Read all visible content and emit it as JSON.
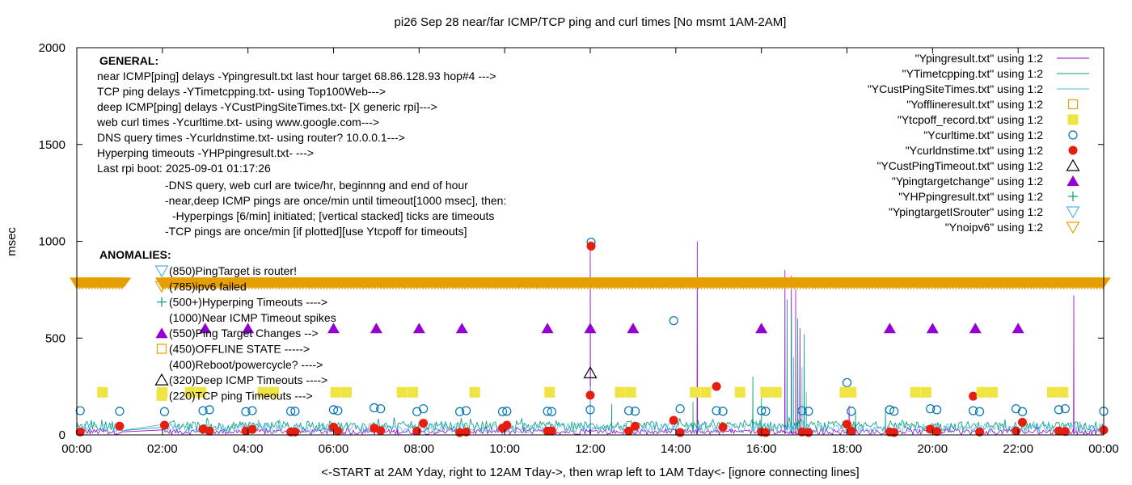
{
  "chart_data": {
    "type": "scatter",
    "title": "pi26 Sep 28  near/far ICMP/TCP ping and curl times [No msmt 1AM-2AM]",
    "xlabel": "<-START at 2AM Yday, right to 12AM Tday->, then wrap left to 1AM Tday<- [ignore connecting lines]",
    "ylabel": "msec",
    "xlim": [
      0,
      24
    ],
    "ylim": [
      0,
      2000
    ],
    "x_ticks": [
      {
        "v": 0,
        "label": "00:00"
      },
      {
        "v": 2,
        "label": "02:00"
      },
      {
        "v": 4,
        "label": "04:00"
      },
      {
        "v": 6,
        "label": "06:00"
      },
      {
        "v": 8,
        "label": "08:00"
      },
      {
        "v": 10,
        "label": "10:00"
      },
      {
        "v": 12,
        "label": "12:00"
      },
      {
        "v": 14,
        "label": "14:00"
      },
      {
        "v": 16,
        "label": "16:00"
      },
      {
        "v": 18,
        "label": "18:00"
      },
      {
        "v": 20,
        "label": "20:00"
      },
      {
        "v": 22,
        "label": "22:00"
      },
      {
        "v": 24,
        "label": "00:00"
      }
    ],
    "y_ticks": [
      {
        "v": 0,
        "label": "0"
      },
      {
        "v": 500,
        "label": "500"
      },
      {
        "v": 1000,
        "label": "1000"
      },
      {
        "v": 1500,
        "label": "1500"
      },
      {
        "v": 2000,
        "label": "2000"
      }
    ],
    "legend_position": "top-right",
    "legend": [
      {
        "label": "\"Ypingresult.txt\" using 1:2",
        "kind": "line",
        "color": "#9400d3"
      },
      {
        "label": "\"YTimetcpping.txt\" using 1:2",
        "kind": "line",
        "color": "#009e73"
      },
      {
        "label": "\"YCustPingSiteTimes.txt\" using 1:2",
        "kind": "line",
        "color": "#56b4e9"
      },
      {
        "label": "\"Yofflineresult.txt\" using 1:2",
        "kind": "open-square",
        "color": "#e69f00"
      },
      {
        "label": "\"Ytcpoff_record.txt\" using 1:2",
        "kind": "filled-square",
        "color": "#f0e442"
      },
      {
        "label": "\"Ycurltime.txt\" using 1:2",
        "kind": "open-circle",
        "color": "#0072b2"
      },
      {
        "label": "\"Ycurldnstime.txt\" using 1:2",
        "kind": "filled-circle",
        "color": "#e51e10"
      },
      {
        "label": "\"YCustPingTimeout.txt\" using 1:2",
        "kind": "open-triangle",
        "color": "#000000"
      },
      {
        "label": "\"Ypingtargetchange\" using 1:2",
        "kind": "filled-triangle",
        "color": "#9400d3"
      },
      {
        "label": "\"YHPpingresult.txt\" using 1:2",
        "kind": "plus",
        "color": "#009e73"
      },
      {
        "label": "\"YpingtargetISrouter\" using 1:2",
        "kind": "open-down-triangle",
        "color": "#56b4e9"
      },
      {
        "label": "\"Ynoipv6\" using 1:2",
        "kind": "open-down-triangle",
        "color": "#e69f00"
      }
    ],
    "annotations": {
      "general_header": "GENERAL:",
      "general_lines": [
        "near ICMP[ping] delays -Ypingresult.txt last hour target 68.86.128.93 hop#4 --->",
        "TCP ping delays -YTimetcpping.txt- using Top100Web--->",
        "deep ICMP[ping] delays -YCustPingSiteTimes.txt- [X generic rpi]--->",
        "web curl times -Ycurltime.txt- using www.google.com--->",
        "DNS query times -Ycurldnstime.txt- using router? 10.0.0.1--->",
        "Hyperping timeouts -YHPpingresult.txt- --->",
        "Last rpi boot: 2025-09-01 01:17:26"
      ],
      "notes": [
        "-DNS query, web curl are twice/hr, beginnng and end of hour",
        "-near,deep ICMP pings are once/min until timeout[1000 msec], then:",
        "-Hyperpings [6/min] initiated; [vertical stacked] ticks are timeouts",
        "-TCP pings are once/min [if plotted][use Ytcpoff for timeouts]"
      ],
      "anomalies_header": "ANOMALIES:",
      "anomaly_lines": [
        {
          "text": "(850)PingTarget is router!",
          "marker": "open-down-triangle",
          "color": "#56b4e9"
        },
        {
          "text": "(785)ipv6 failed",
          "marker": "open-down-triangle",
          "color": "#e69f00"
        },
        {
          "text": "(500+)Hyperping Timeouts ---->",
          "marker": "plus",
          "color": "#009e73"
        },
        {
          "text": "(1000)Near ICMP Timeout spikes",
          "marker": "none",
          "color": ""
        },
        {
          "text": "(550)Ping Target Changes -->",
          "marker": "filled-triangle",
          "color": "#9400d3"
        },
        {
          "text": "(450)OFFLINE STATE ----->",
          "marker": "open-square",
          "color": "#e69f00"
        },
        {
          "text": "(400)Reboot/powercycle? ---->",
          "marker": "none",
          "color": ""
        },
        {
          "text": "(320)Deep ICMP Timeouts ---->",
          "marker": "open-triangle",
          "color": "#000000"
        },
        {
          "text": "(220)TCP ping Timeouts --->",
          "marker": "filled-square",
          "color": "#f0e442"
        }
      ]
    },
    "series": [
      {
        "name": "\"Ycurltime.txt\" using 1:2",
        "kind": "open-circle",
        "color": "#0072b2",
        "points": [
          [
            0.08,
            125
          ],
          [
            1.0,
            122
          ],
          [
            2.05,
            120
          ],
          [
            2.95,
            125
          ],
          [
            3.1,
            130
          ],
          [
            3.95,
            120
          ],
          [
            4.1,
            125
          ],
          [
            5.0,
            122
          ],
          [
            5.1,
            122
          ],
          [
            6.0,
            130
          ],
          [
            6.1,
            125
          ],
          [
            6.95,
            140
          ],
          [
            7.1,
            135
          ],
          [
            7.95,
            120
          ],
          [
            8.1,
            135
          ],
          [
            8.95,
            120
          ],
          [
            9.1,
            125
          ],
          [
            9.95,
            120
          ],
          [
            10.05,
            122
          ],
          [
            11.0,
            122
          ],
          [
            11.1,
            120
          ],
          [
            12.0,
            130
          ],
          [
            12.02,
            995
          ],
          [
            12.9,
            125
          ],
          [
            13.05,
            122
          ],
          [
            13.95,
            590
          ],
          [
            14.1,
            135
          ],
          [
            14.95,
            125
          ],
          [
            15.1,
            122
          ],
          [
            16.0,
            125
          ],
          [
            16.1,
            122
          ],
          [
            16.95,
            125
          ],
          [
            17.1,
            122
          ],
          [
            18.0,
            270
          ],
          [
            18.1,
            122
          ],
          [
            19.0,
            130
          ],
          [
            19.1,
            122
          ],
          [
            19.95,
            135
          ],
          [
            20.1,
            130
          ],
          [
            20.95,
            125
          ],
          [
            21.1,
            120
          ],
          [
            21.95,
            135
          ],
          [
            22.1,
            120
          ],
          [
            22.95,
            130
          ],
          [
            23.1,
            135
          ],
          [
            24.0,
            122
          ]
        ]
      },
      {
        "name": "\"Ycurldnstime.txt\" using 1:2",
        "kind": "filled-circle",
        "color": "#e51e10",
        "points": [
          [
            0.08,
            15
          ],
          [
            1.0,
            45
          ],
          [
            2.05,
            50
          ],
          [
            2.95,
            30
          ],
          [
            3.1,
            20
          ],
          [
            3.95,
            20
          ],
          [
            4.1,
            28
          ],
          [
            5.0,
            15
          ],
          [
            5.1,
            15
          ],
          [
            6.0,
            40
          ],
          [
            6.1,
            20
          ],
          [
            6.95,
            35
          ],
          [
            7.1,
            22
          ],
          [
            7.95,
            20
          ],
          [
            8.1,
            60
          ],
          [
            8.95,
            12
          ],
          [
            9.1,
            15
          ],
          [
            9.95,
            35
          ],
          [
            10.05,
            50
          ],
          [
            11.0,
            20
          ],
          [
            11.1,
            20
          ],
          [
            12.0,
            205
          ],
          [
            12.02,
            975
          ],
          [
            12.9,
            20
          ],
          [
            13.05,
            45
          ],
          [
            13.95,
            75
          ],
          [
            14.1,
            12
          ],
          [
            14.95,
            250
          ],
          [
            15.1,
            40
          ],
          [
            16.0,
            15
          ],
          [
            16.1,
            12
          ],
          [
            16.95,
            15
          ],
          [
            17.1,
            12
          ],
          [
            18.0,
            55
          ],
          [
            18.1,
            20
          ],
          [
            19.0,
            15
          ],
          [
            19.1,
            12
          ],
          [
            19.95,
            30
          ],
          [
            20.1,
            18
          ],
          [
            20.95,
            200
          ],
          [
            21.1,
            15
          ],
          [
            21.95,
            20
          ],
          [
            22.1,
            65
          ],
          [
            22.95,
            20
          ],
          [
            23.1,
            18
          ],
          [
            24.0,
            25
          ]
        ]
      },
      {
        "name": "\"Ypingtargetchange\" using 1:2",
        "kind": "filled-triangle",
        "color": "#9400d3",
        "points": [
          [
            3.0,
            550
          ],
          [
            4.0,
            550
          ],
          [
            6.0,
            550
          ],
          [
            7.0,
            550
          ],
          [
            8.0,
            550
          ],
          [
            9.0,
            550
          ],
          [
            11.0,
            550
          ],
          [
            12.0,
            550
          ],
          [
            13.0,
            550
          ],
          [
            16.0,
            550
          ],
          [
            19.0,
            550
          ],
          [
            20.0,
            550
          ],
          [
            21.0,
            550
          ],
          [
            22.0,
            550
          ]
        ]
      },
      {
        "name": "\"YCustPingTimeout.txt\" using 1:2",
        "kind": "open-triangle",
        "color": "#000000",
        "points": [
          [
            12.0,
            320
          ]
        ]
      },
      {
        "name": "\"Ytcpoff_record.txt\" using 1:2",
        "kind": "filled-square",
        "color": "#f0e442",
        "points": [
          [
            0.6,
            220
          ],
          [
            2.0,
            220
          ],
          [
            2.65,
            220
          ],
          [
            2.9,
            220
          ],
          [
            4.35,
            220
          ],
          [
            4.6,
            220
          ],
          [
            6.05,
            220
          ],
          [
            6.3,
            220
          ],
          [
            7.6,
            220
          ],
          [
            7.85,
            220
          ],
          [
            9.3,
            220
          ],
          [
            11.05,
            220
          ],
          [
            12.7,
            220
          ],
          [
            12.95,
            220
          ],
          [
            14.45,
            220
          ],
          [
            14.7,
            220
          ],
          [
            15.5,
            220
          ],
          [
            16.1,
            220
          ],
          [
            16.35,
            220
          ],
          [
            17.95,
            220
          ],
          [
            18.1,
            220
          ],
          [
            19.6,
            220
          ],
          [
            19.85,
            220
          ],
          [
            21.15,
            220
          ],
          [
            21.4,
            220
          ],
          [
            22.8,
            220
          ],
          [
            23.05,
            220
          ]
        ]
      },
      {
        "name": "\"Ynoipv6\" using 1:2",
        "kind": "open-down-triangle",
        "color": "#e69f00",
        "x_ranges": [
          [
            0.0,
            1.1
          ],
          [
            2.0,
            24.0
          ]
        ],
        "y": 785,
        "step": 0.07
      }
    ],
    "line_series": [
      {
        "name": "\"Ypingresult.txt\" using 1:2",
        "color": "#9400d3",
        "base": [
          2,
          30
        ],
        "noise": 15,
        "spikes": [
          [
            12.0,
            1000
          ],
          [
            14.5,
            1000
          ],
          [
            16.55,
            850
          ],
          [
            16.7,
            820
          ],
          [
            16.8,
            750
          ],
          [
            16.9,
            550
          ],
          [
            23.3,
            720
          ],
          [
            18.05,
            150
          ],
          [
            7.5,
            40
          ]
        ]
      },
      {
        "name": "\"YTimetcpping.txt\" using 1:2",
        "color": "#009e73",
        "base": [
          20,
          70
        ],
        "noise": 25,
        "spikes": [
          [
            16.6,
            700
          ],
          [
            16.7,
            620
          ],
          [
            16.85,
            600
          ],
          [
            17.0,
            520
          ],
          [
            14.4,
            170
          ],
          [
            16.0,
            200
          ],
          [
            12.5,
            160
          ],
          [
            18.9,
            140
          ],
          [
            15.8,
            300
          ],
          [
            18.2,
            120
          ]
        ]
      },
      {
        "name": "\"YCustPingSiteTimes.txt\" using 1:2",
        "color": "#56b4e9",
        "base": [
          10,
          60
        ],
        "noise": 20,
        "spikes": [
          [
            16.75,
            400
          ],
          [
            16.95,
            350
          ],
          [
            12.0,
            250
          ],
          [
            17.05,
            220
          ]
        ]
      }
    ]
  }
}
